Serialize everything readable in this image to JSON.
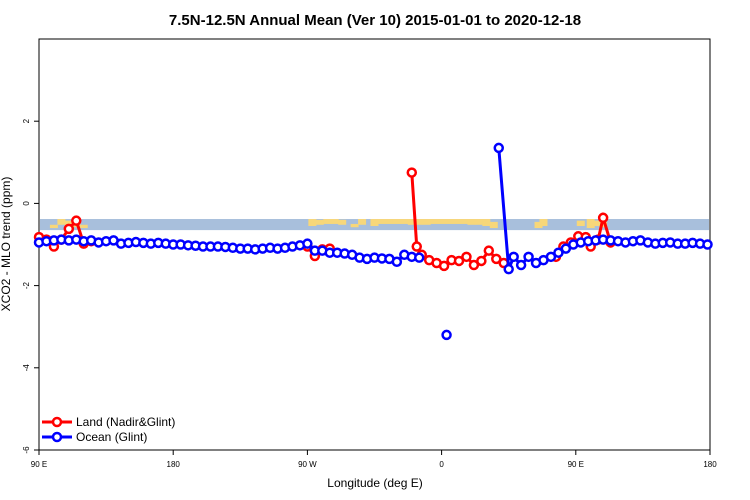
{
  "chart_data": {
    "type": "line",
    "title": "7.5N-12.5N Annual Mean (Ver 10)   2015-01-01 to 2020-12-18",
    "xlabel": "Longitude (deg E)",
    "ylabel": "XCO2 - MLO trend (ppm)",
    "xlim": [
      -90,
      180
    ],
    "ylim": [
      -6,
      4
    ],
    "x_ticks": [
      {
        "value": -90,
        "label": "90 E"
      },
      {
        "value": -36,
        "label": "180"
      },
      {
        "value": 18,
        "label": "90 W"
      },
      {
        "value": 72,
        "label": "0"
      },
      {
        "value": 126,
        "label": "90 E"
      },
      {
        "value": 180,
        "label": "180"
      }
    ],
    "y_ticks": [
      {
        "value": 2,
        "label": "2"
      },
      {
        "value": 0,
        "label": "0"
      },
      {
        "value": -2,
        "label": "-2"
      },
      {
        "value": -4,
        "label": "-4"
      },
      {
        "value": -6,
        "label": "-6"
      }
    ],
    "band": {
      "y_min": -0.65,
      "y_max": -0.38,
      "color": "#a8bfdc"
    },
    "land_fraction": {
      "color": "#f7d77a",
      "bars": [
        [
          -84,
          -0.6,
          -0.52
        ],
        [
          -81,
          -0.52,
          -0.38
        ],
        [
          -78,
          -0.55,
          -0.42
        ],
        [
          -75,
          -0.58,
          -0.45
        ],
        [
          -72,
          -0.6,
          -0.52
        ],
        [
          20,
          -0.55,
          -0.38
        ],
        [
          23,
          -0.52,
          -0.4
        ],
        [
          26,
          -0.5,
          -0.38
        ],
        [
          29,
          -0.5,
          -0.38
        ],
        [
          32,
          -0.52,
          -0.4
        ],
        [
          37,
          -0.58,
          -0.5
        ],
        [
          40,
          -0.52,
          -0.38
        ],
        [
          45,
          -0.55,
          -0.38
        ],
        [
          48,
          -0.5,
          -0.38
        ],
        [
          51,
          -0.5,
          -0.38
        ],
        [
          54,
          -0.5,
          -0.38
        ],
        [
          57,
          -0.5,
          -0.38
        ],
        [
          60,
          -0.52,
          -0.38
        ],
        [
          63,
          -0.52,
          -0.38
        ],
        [
          66,
          -0.52,
          -0.38
        ],
        [
          69,
          -0.5,
          -0.38
        ],
        [
          72,
          -0.5,
          -0.38
        ],
        [
          75,
          -0.5,
          -0.38
        ],
        [
          78,
          -0.5,
          -0.38
        ],
        [
          81,
          -0.5,
          -0.38
        ],
        [
          84,
          -0.52,
          -0.38
        ],
        [
          87,
          -0.52,
          -0.38
        ],
        [
          90,
          -0.55,
          -0.38
        ],
        [
          93,
          -0.6,
          -0.45
        ],
        [
          111,
          -0.6,
          -0.45
        ],
        [
          113,
          -0.55,
          -0.38
        ],
        [
          128,
          -0.55,
          -0.42
        ],
        [
          132,
          -0.6,
          -0.38
        ],
        [
          134,
          -0.55,
          -0.42
        ],
        [
          137,
          -0.58,
          -0.45
        ]
      ]
    },
    "series": [
      {
        "name": "Land (Nadir&Glint)",
        "color": "#ff0000",
        "points": [
          [
            -90,
            -0.82
          ],
          [
            -87,
            -0.88
          ],
          [
            -84,
            -1.05
          ],
          [
            -81,
            -0.88
          ],
          [
            -78,
            -0.62
          ],
          [
            -75,
            -0.42
          ],
          [
            -72,
            -0.98
          ],
          [
            -69,
            -0.92
          ],
          [
            18,
            -1.05
          ],
          [
            21,
            -1.28
          ],
          [
            24,
            -1.12
          ],
          [
            27,
            -1.1
          ],
          [
            60,
            0.75
          ],
          [
            62,
            -1.05
          ],
          [
            64,
            -1.25
          ],
          [
            67,
            -1.38
          ],
          [
            70,
            -1.45
          ],
          [
            73,
            -1.52
          ],
          [
            76,
            -1.38
          ],
          [
            79,
            -1.4
          ],
          [
            82,
            -1.3
          ],
          [
            85,
            -1.5
          ],
          [
            88,
            -1.4
          ],
          [
            91,
            -1.15
          ],
          [
            94,
            -1.35
          ],
          [
            97,
            -1.45
          ],
          [
            118,
            -1.3
          ],
          [
            121,
            -1.05
          ],
          [
            124,
            -0.95
          ],
          [
            127,
            -0.8
          ],
          [
            130,
            -0.82
          ],
          [
            132,
            -1.05
          ],
          [
            135,
            -0.88
          ],
          [
            137,
            -0.35
          ],
          [
            140,
            -0.95
          ]
        ]
      },
      {
        "name": "Ocean (Glint)",
        "color": "#0000ff",
        "points": [
          [
            -90,
            -0.95
          ],
          [
            -87,
            -0.92
          ],
          [
            -84,
            -0.9
          ],
          [
            -81,
            -0.88
          ],
          [
            -78,
            -0.9
          ],
          [
            -75,
            -0.88
          ],
          [
            -72,
            -0.92
          ],
          [
            -69,
            -0.9
          ],
          [
            -66,
            -0.95
          ],
          [
            -63,
            -0.92
          ],
          [
            -60,
            -0.9
          ],
          [
            -57,
            -0.98
          ],
          [
            -54,
            -0.96
          ],
          [
            -51,
            -0.94
          ],
          [
            -48,
            -0.96
          ],
          [
            -45,
            -0.98
          ],
          [
            -42,
            -0.96
          ],
          [
            -39,
            -0.98
          ],
          [
            -36,
            -1.0
          ],
          [
            -33,
            -1.0
          ],
          [
            -30,
            -1.02
          ],
          [
            -27,
            -1.03
          ],
          [
            -24,
            -1.05
          ],
          [
            -21,
            -1.05
          ],
          [
            -18,
            -1.05
          ],
          [
            -15,
            -1.06
          ],
          [
            -12,
            -1.08
          ],
          [
            -9,
            -1.1
          ],
          [
            -6,
            -1.1
          ],
          [
            -3,
            -1.12
          ],
          [
            0,
            -1.1
          ],
          [
            3,
            -1.08
          ],
          [
            6,
            -1.1
          ],
          [
            9,
            -1.08
          ],
          [
            12,
            -1.05
          ],
          [
            15,
            -1.02
          ],
          [
            18,
            -0.98
          ],
          [
            21,
            -1.15
          ],
          [
            24,
            -1.15
          ],
          [
            27,
            -1.2
          ],
          [
            30,
            -1.2
          ],
          [
            33,
            -1.22
          ],
          [
            36,
            -1.25
          ],
          [
            39,
            -1.32
          ],
          [
            42,
            -1.35
          ],
          [
            45,
            -1.32
          ],
          [
            48,
            -1.34
          ],
          [
            51,
            -1.35
          ],
          [
            54,
            -1.42
          ],
          [
            57,
            -1.25
          ],
          [
            60,
            -1.3
          ],
          [
            63,
            -1.32
          ],
          [
            95,
            1.35
          ],
          [
            99,
            -1.6
          ],
          [
            101,
            -1.3
          ],
          [
            104,
            -1.5
          ],
          [
            107,
            -1.3
          ],
          [
            110,
            -1.45
          ],
          [
            113,
            -1.38
          ],
          [
            116,
            -1.3
          ],
          [
            119,
            -1.2
          ],
          [
            122,
            -1.1
          ],
          [
            125,
            -1.0
          ],
          [
            128,
            -0.95
          ],
          [
            131,
            -0.92
          ],
          [
            134,
            -0.9
          ],
          [
            137,
            -0.88
          ],
          [
            140,
            -0.9
          ],
          [
            143,
            -0.92
          ],
          [
            146,
            -0.95
          ],
          [
            149,
            -0.92
          ],
          [
            152,
            -0.9
          ],
          [
            155,
            -0.95
          ],
          [
            158,
            -0.98
          ],
          [
            161,
            -0.96
          ],
          [
            164,
            -0.95
          ],
          [
            167,
            -0.98
          ],
          [
            170,
            -0.98
          ],
          [
            173,
            -0.96
          ],
          [
            176,
            -0.98
          ],
          [
            179,
            -1.0
          ]
        ],
        "isolated_points": [
          [
            74,
            -3.2
          ]
        ]
      }
    ],
    "legend": {
      "position": "bottom-left"
    }
  }
}
